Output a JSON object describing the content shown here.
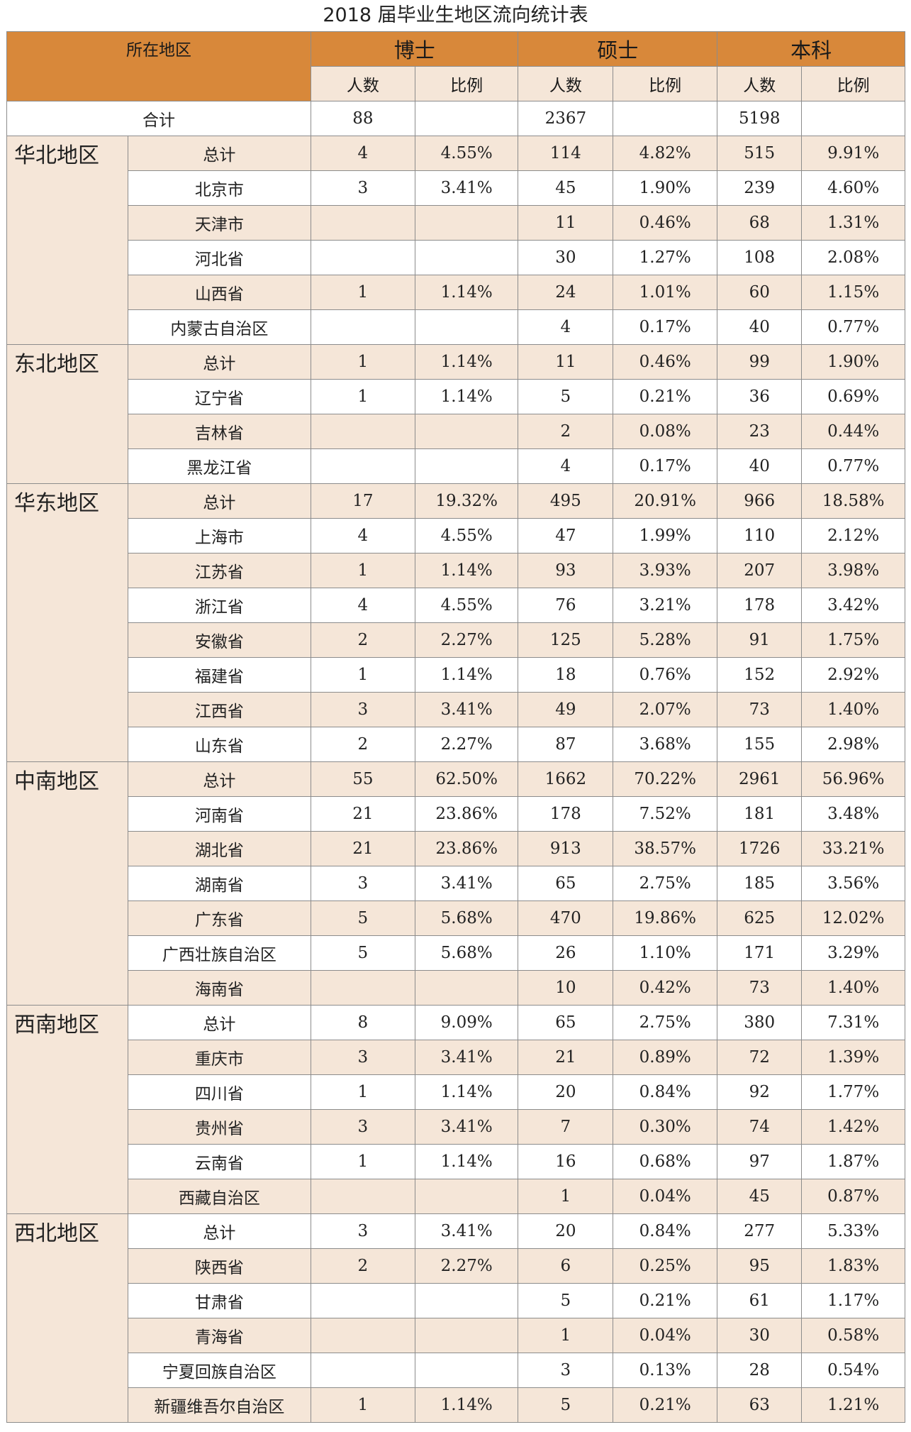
{
  "title": "2018 届毕业生地区流向统计表",
  "header": {
    "region_label": "所在地区",
    "groups": [
      "博士",
      "硕士",
      "本科"
    ],
    "count_label": "人数",
    "ratio_label": "比例"
  },
  "grand_total": {
    "label": "合计",
    "phd": "88",
    "master": "2367",
    "bachelor": "5198"
  },
  "regions": [
    {
      "name": "华北地区",
      "rows": [
        [
          "总计",
          "4",
          "4.55%",
          "114",
          "4.82%",
          "515",
          "9.91%"
        ],
        [
          "北京市",
          "3",
          "3.41%",
          "45",
          "1.90%",
          "239",
          "4.60%"
        ],
        [
          "天津市",
          "",
          "",
          "11",
          "0.46%",
          "68",
          "1.31%"
        ],
        [
          "河北省",
          "",
          "",
          "30",
          "1.27%",
          "108",
          "2.08%"
        ],
        [
          "山西省",
          "1",
          "1.14%",
          "24",
          "1.01%",
          "60",
          "1.15%"
        ],
        [
          "内蒙古自治区",
          "",
          "",
          "4",
          "0.17%",
          "40",
          "0.77%"
        ]
      ]
    },
    {
      "name": "东北地区",
      "rows": [
        [
          "总计",
          "1",
          "1.14%",
          "11",
          "0.46%",
          "99",
          "1.90%"
        ],
        [
          "辽宁省",
          "1",
          "1.14%",
          "5",
          "0.21%",
          "36",
          "0.69%"
        ],
        [
          "吉林省",
          "",
          "",
          "2",
          "0.08%",
          "23",
          "0.44%"
        ],
        [
          "黑龙江省",
          "",
          "",
          "4",
          "0.17%",
          "40",
          "0.77%"
        ]
      ]
    },
    {
      "name": "华东地区",
      "rows": [
        [
          "总计",
          "17",
          "19.32%",
          "495",
          "20.91%",
          "966",
          "18.58%"
        ],
        [
          "上海市",
          "4",
          "4.55%",
          "47",
          "1.99%",
          "110",
          "2.12%"
        ],
        [
          "江苏省",
          "1",
          "1.14%",
          "93",
          "3.93%",
          "207",
          "3.98%"
        ],
        [
          "浙江省",
          "4",
          "4.55%",
          "76",
          "3.21%",
          "178",
          "3.42%"
        ],
        [
          "安徽省",
          "2",
          "2.27%",
          "125",
          "5.28%",
          "91",
          "1.75%"
        ],
        [
          "福建省",
          "1",
          "1.14%",
          "18",
          "0.76%",
          "152",
          "2.92%"
        ],
        [
          "江西省",
          "3",
          "3.41%",
          "49",
          "2.07%",
          "73",
          "1.40%"
        ],
        [
          "山东省",
          "2",
          "2.27%",
          "87",
          "3.68%",
          "155",
          "2.98%"
        ]
      ]
    },
    {
      "name": "中南地区",
      "rows": [
        [
          "总计",
          "55",
          "62.50%",
          "1662",
          "70.22%",
          "2961",
          "56.96%"
        ],
        [
          "河南省",
          "21",
          "23.86%",
          "178",
          "7.52%",
          "181",
          "3.48%"
        ],
        [
          "湖北省",
          "21",
          "23.86%",
          "913",
          "38.57%",
          "1726",
          "33.21%"
        ],
        [
          "湖南省",
          "3",
          "3.41%",
          "65",
          "2.75%",
          "185",
          "3.56%"
        ],
        [
          "广东省",
          "5",
          "5.68%",
          "470",
          "19.86%",
          "625",
          "12.02%"
        ],
        [
          "广西壮族自治区",
          "5",
          "5.68%",
          "26",
          "1.10%",
          "171",
          "3.29%"
        ],
        [
          "海南省",
          "",
          "",
          "10",
          "0.42%",
          "73",
          "1.40%"
        ]
      ]
    },
    {
      "name": "西南地区",
      "rows": [
        [
          "总计",
          "8",
          "9.09%",
          "65",
          "2.75%",
          "380",
          "7.31%"
        ],
        [
          "重庆市",
          "3",
          "3.41%",
          "21",
          "0.89%",
          "72",
          "1.39%"
        ],
        [
          "四川省",
          "1",
          "1.14%",
          "20",
          "0.84%",
          "92",
          "1.77%"
        ],
        [
          "贵州省",
          "3",
          "3.41%",
          "7",
          "0.30%",
          "74",
          "1.42%"
        ],
        [
          "云南省",
          "1",
          "1.14%",
          "16",
          "0.68%",
          "97",
          "1.87%"
        ],
        [
          "西藏自治区",
          "",
          "",
          "1",
          "0.04%",
          "45",
          "0.87%"
        ]
      ]
    },
    {
      "name": "西北地区",
      "rows": [
        [
          "总计",
          "3",
          "3.41%",
          "20",
          "0.84%",
          "277",
          "5.33%"
        ],
        [
          "陕西省",
          "2",
          "2.27%",
          "6",
          "0.25%",
          "95",
          "1.83%"
        ],
        [
          "甘肃省",
          "",
          "",
          "5",
          "0.21%",
          "61",
          "1.17%"
        ],
        [
          "青海省",
          "",
          "",
          "1",
          "0.04%",
          "30",
          "0.58%"
        ],
        [
          "宁夏回族自治区",
          "",
          "",
          "3",
          "0.13%",
          "28",
          "0.54%"
        ],
        [
          "新疆维吾尔自治区",
          "1",
          "1.14%",
          "5",
          "0.21%",
          "63",
          "1.21%"
        ]
      ]
    }
  ]
}
